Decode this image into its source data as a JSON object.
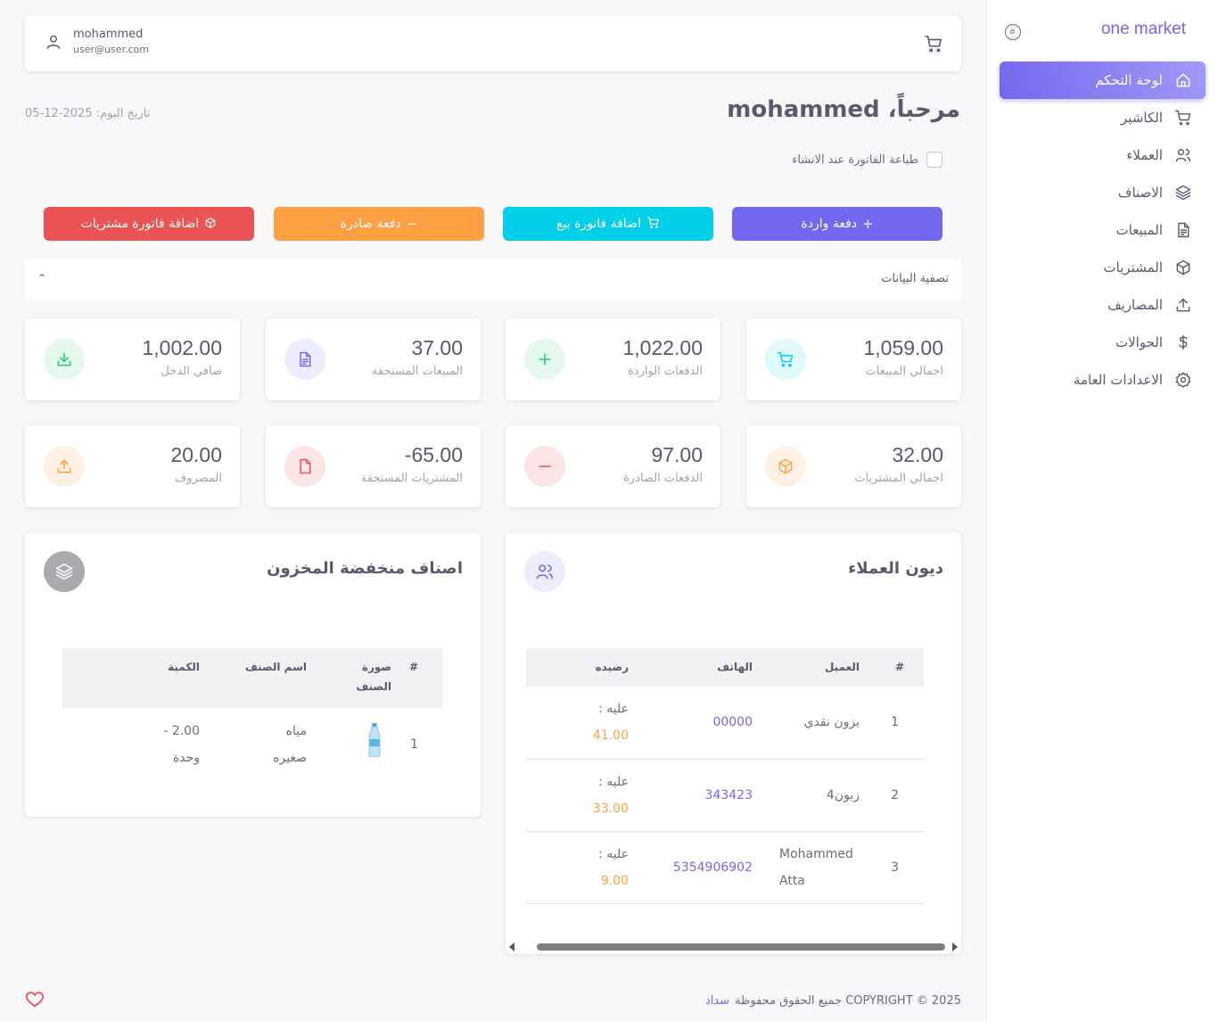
{
  "sidebar": {
    "brand": "one market",
    "items": [
      {
        "label": "لوحة التحكم",
        "icon": "home-icon",
        "active": true
      },
      {
        "label": "الكاشير",
        "icon": "cart-icon"
      },
      {
        "label": "العملاء",
        "icon": "users-icon"
      },
      {
        "label": "الاصناف",
        "icon": "layers-icon"
      },
      {
        "label": "المبيعات",
        "icon": "file-icon"
      },
      {
        "label": "المشتريات",
        "icon": "box-icon"
      },
      {
        "label": "المصاريف",
        "icon": "upload-icon"
      },
      {
        "label": "الحوالات",
        "icon": "dollar-icon"
      },
      {
        "label": "الاعدادات العامة",
        "icon": "gear-icon"
      }
    ]
  },
  "navbar": {
    "user_name": "mohammed",
    "user_email": "user@user.com"
  },
  "header": {
    "welcome": "مرحباً، mohammed",
    "today": "تاريخ اليوم: 2025-12-05",
    "print_label": "طباعة الفاتورة عند الانشاء"
  },
  "actions": {
    "incoming_payment": "دفعة واردة",
    "sale_invoice": "اضافة فاتورة بيع",
    "outgoing_payment": "دفعة صادرة",
    "purchase_invoice": "اضافة فاتورة مشتريات"
  },
  "filter": {
    "title": "تصفية البيانات"
  },
  "stats": {
    "total_sales": {
      "value": "1,059.00",
      "label": "اجمالي المبيعات"
    },
    "incoming_payments": {
      "value": "1,022.00",
      "label": "الدفعات الواردة"
    },
    "sales_due": {
      "value": "37.00",
      "label": "المبيعات المستحقة"
    },
    "net_income": {
      "value": "1,002.00",
      "label": "صافي الدخل"
    },
    "total_purchases": {
      "value": "32.00",
      "label": "اجمالي المشتريات"
    },
    "outgoing_payments": {
      "value": "97.00",
      "label": "الدفعات الصادرة"
    },
    "purchases_due": {
      "value": "-65.00",
      "label": "المشتريات المستحقة"
    },
    "expenses": {
      "value": "20.00",
      "label": "المصروف"
    }
  },
  "debts": {
    "title": "ديون العملاء",
    "headers": {
      "num": "#",
      "client": "العميل",
      "phone": "الهاتف",
      "balance": "رصيده"
    },
    "rows": [
      {
        "num": "1",
        "client": "بزون نقدي",
        "phone": "00000",
        "owe": "عليه :",
        "amount": "41.00"
      },
      {
        "num": "2",
        "client": "زبون4",
        "phone": "343423",
        "owe": "عليه :",
        "amount": "33.00"
      },
      {
        "num": "3",
        "client": "Mohammed Atta",
        "phone": "5354906902",
        "owe": "عليه :",
        "amount": "9.00"
      }
    ]
  },
  "low_stock": {
    "title": "اصناف منخفضة المخزون",
    "headers": {
      "num": "#",
      "image": "صورة الصنف",
      "name": "اسم الصنف",
      "qty": "الكمية"
    },
    "rows": [
      {
        "num": "1",
        "name": "مياه صغيره",
        "qty": "2.00 - وحدة"
      }
    ]
  },
  "footer": {
    "copyright": "COPYRIGHT © 2025 جميع الحقوق محفوظة",
    "brand": "سداد"
  },
  "colors": {
    "primary": "#7367f0",
    "cyan": "#00cfe8",
    "orange": "#ff9f43",
    "red": "#ea5455",
    "green": "#28c76f"
  }
}
